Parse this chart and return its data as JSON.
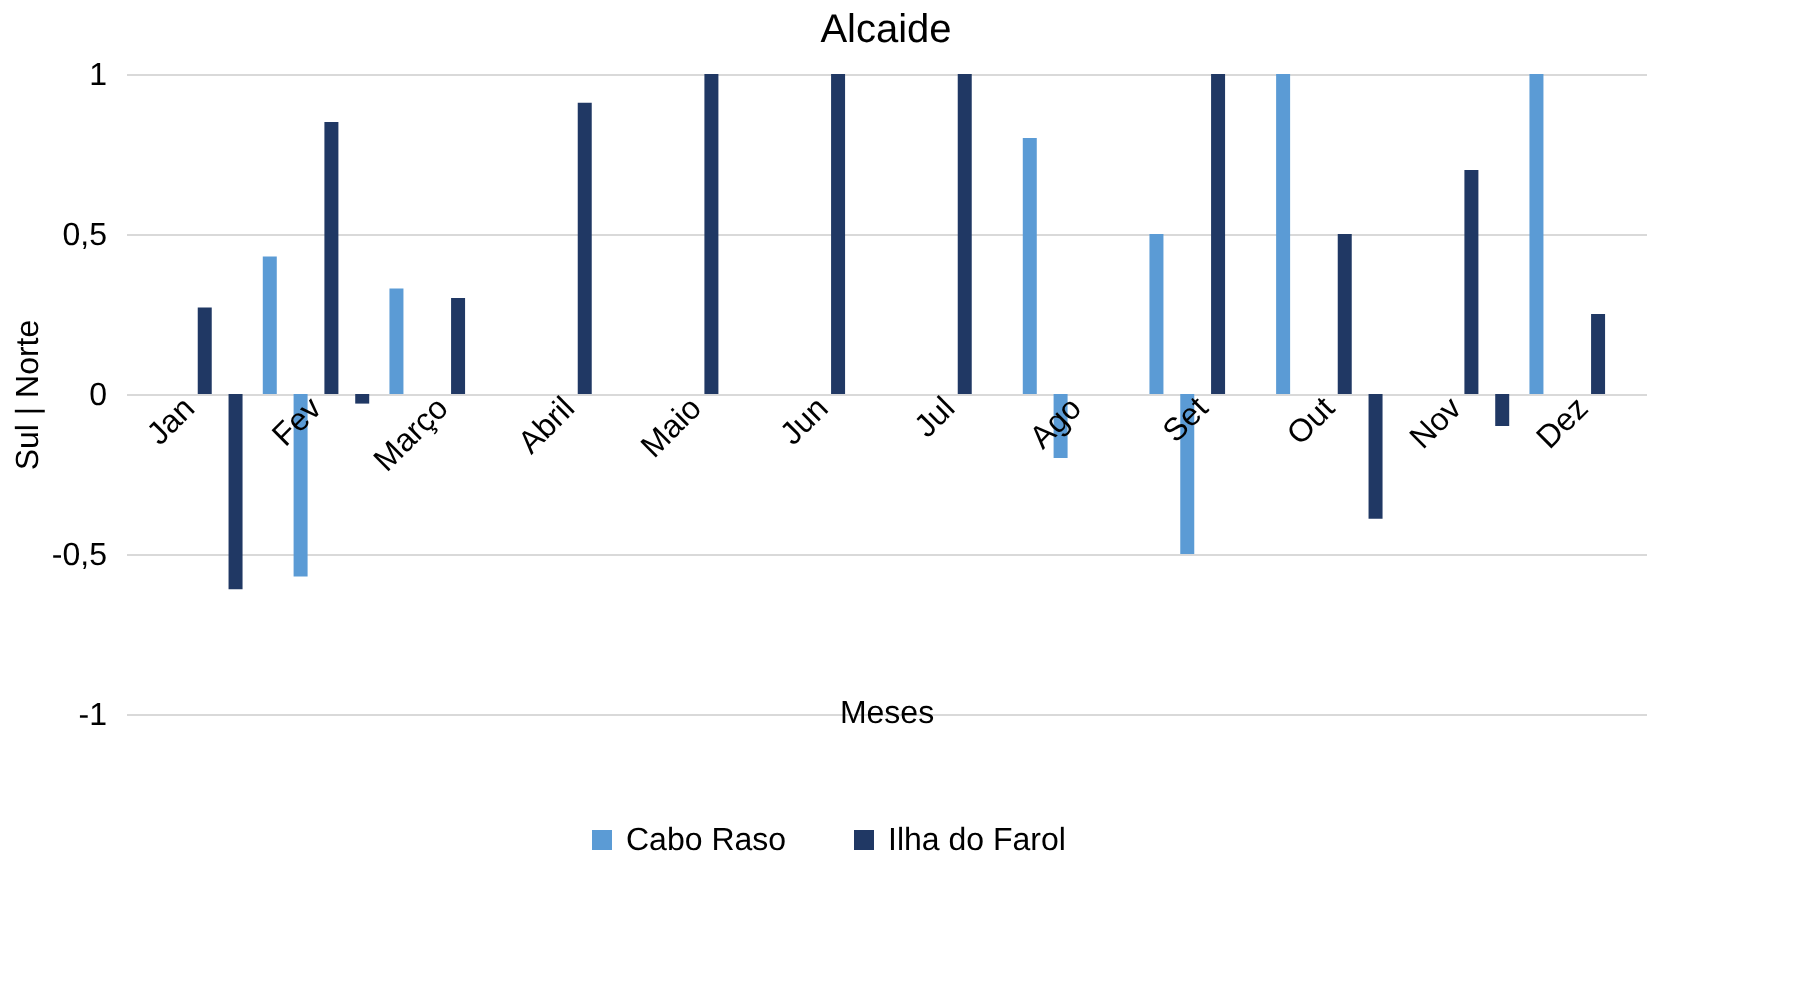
{
  "chart_data": {
    "type": "bar",
    "title": "Alcaide",
    "xlabel": "Meses",
    "ylabel": "Sul          |          Norte",
    "categories": [
      "Jan",
      "Fev",
      "Março",
      "Abril",
      "Maio",
      "Jun",
      "Jul",
      "Ago",
      "Set",
      "Out",
      "Nov",
      "Dez"
    ],
    "series": [
      {
        "name": "Cabo Raso",
        "color": "#5b9bd5",
        "values": [
          null,
          0.43,
          0.33,
          null,
          null,
          null,
          null,
          0.8,
          0.5,
          1,
          null,
          1
        ]
      },
      {
        "color": "#5b9bd5",
        "values": [
          null,
          -0.57,
          null,
          null,
          null,
          null,
          null,
          -0.2,
          -0.5,
          null,
          null,
          null
        ]
      },
      {
        "name": "Ilha do Farol",
        "color": "#203864",
        "values": [
          0.27,
          0.85,
          0.3,
          0.91,
          1,
          1,
          1,
          null,
          1,
          0.5,
          0.7,
          0.25
        ]
      },
      {
        "color": "#203864",
        "values": [
          -0.61,
          -0.03,
          null,
          null,
          null,
          null,
          null,
          null,
          null,
          -0.39,
          -0.1,
          null
        ]
      }
    ],
    "ylim": [
      -1,
      1
    ],
    "yticks": [
      -1,
      {
        "value": -0.5,
        "label": "-0,5"
      },
      0,
      {
        "value": 0.5,
        "label": "0,5"
      },
      1
    ],
    "grid": "y",
    "legend": "bottom"
  }
}
